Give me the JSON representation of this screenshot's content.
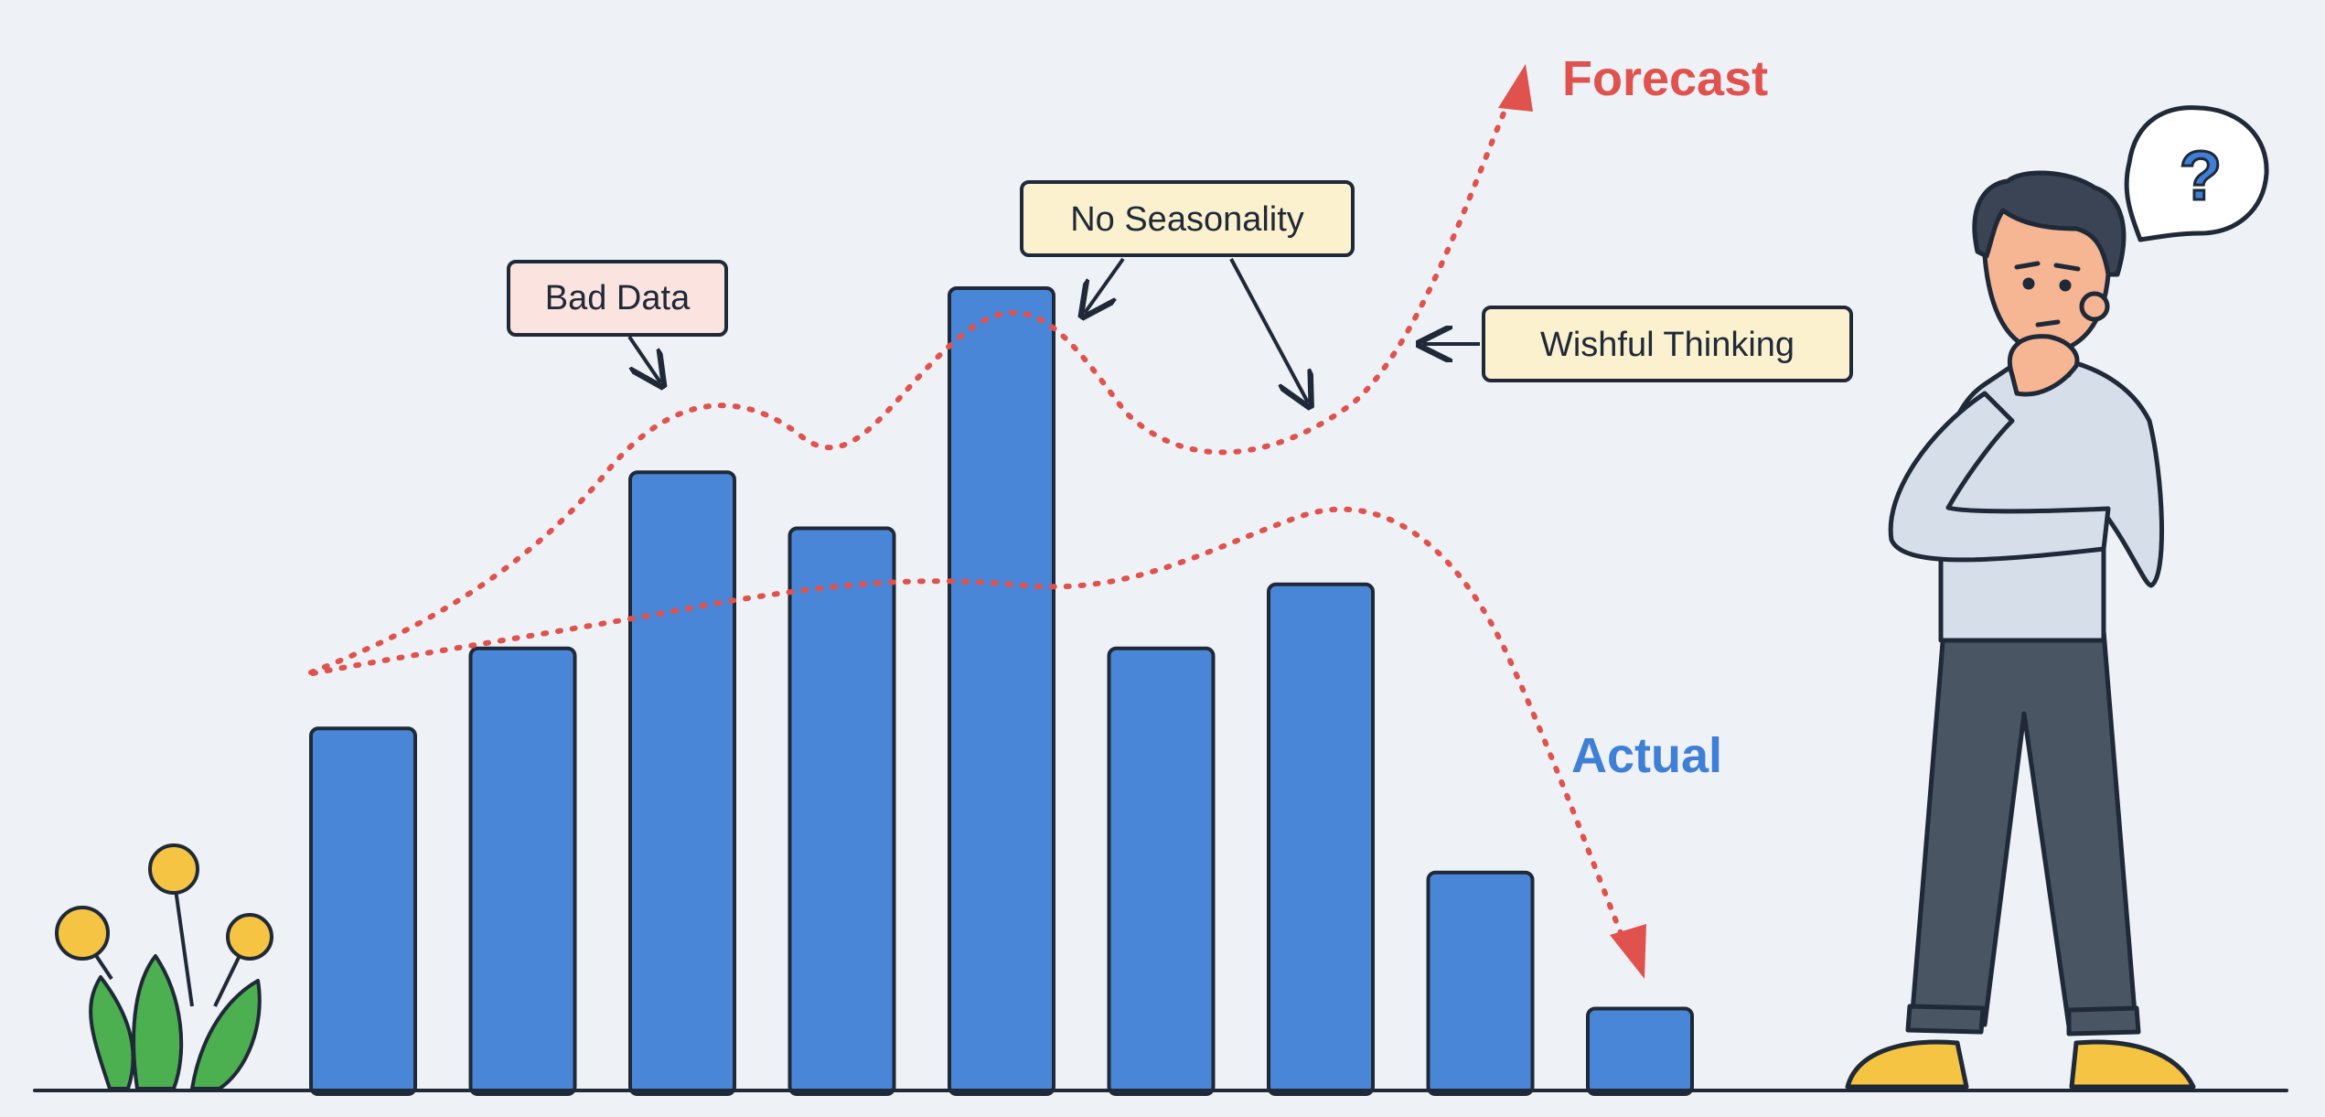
{
  "chart_data": {
    "type": "bar",
    "title": "",
    "xlabel": "",
    "ylabel": "",
    "ylim": [
      0,
      100
    ],
    "grid": false,
    "categories": [
      "",
      "",
      "",
      "",
      "",
      "",
      "",
      "",
      ""
    ],
    "series": [
      {
        "name": "Actual",
        "values": [
          45,
          55,
          77,
          70,
          100,
          55,
          63,
          27,
          10
        ]
      }
    ],
    "forecast_lines": [
      {
        "name": "Forecast",
        "style": "dotted",
        "direction": "rising",
        "ends_with_arrow": true
      },
      {
        "name": "",
        "style": "dotted",
        "direction": "falling",
        "ends_with_arrow": true
      }
    ],
    "annotations": {
      "forecast": "Forecast",
      "actual": "Actual",
      "bad_data": "Bad Data",
      "no_seasonality": "No Seasonality",
      "wishful_thinking": "Wishful Thinking"
    },
    "person_thought": "?"
  },
  "colors": {
    "background": "#eef2f7",
    "bar": "#4a86d8",
    "outline": "#1f2937",
    "forecast": "#e0524d",
    "actual_label": "#3f7fd6",
    "bad_data_fill": "#fbe3e0",
    "callout_fill": "#fbf1cf",
    "plant_stem": "#4caf50",
    "flower": "#f5c443",
    "shirt": "#d6deea",
    "pants": "#4a5563",
    "shoes": "#f5c443",
    "hair": "#3b4454",
    "skin": "#f6b593"
  },
  "icons": [
    "flower-plant-icon",
    "thinking-person-icon",
    "question-bubble-icon"
  ]
}
